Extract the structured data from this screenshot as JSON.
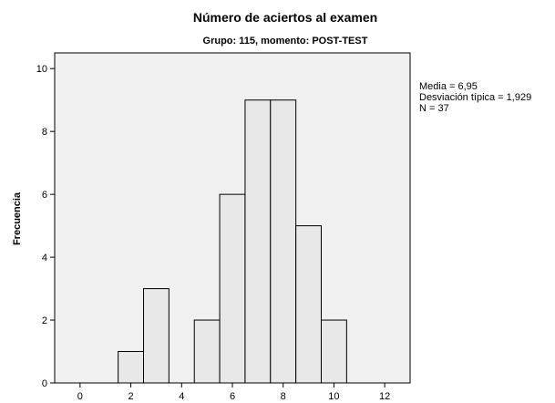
{
  "chart_data": {
    "type": "bar",
    "title": "Número de aciertos al examen",
    "subtitle": "Grupo: 115, momento: POST-TEST",
    "xlabel": "",
    "ylabel": "Frecuencia",
    "xlim": [
      -1,
      13
    ],
    "ylim": [
      0,
      10.5
    ],
    "x_ticks": [
      0,
      2,
      4,
      6,
      8,
      10,
      12
    ],
    "y_ticks": [
      0,
      2,
      4,
      6,
      8,
      10
    ],
    "bin_width": 1,
    "bins": [
      {
        "x": 2,
        "count": 1
      },
      {
        "x": 3,
        "count": 3
      },
      {
        "x": 5,
        "count": 2
      },
      {
        "x": 6,
        "count": 6
      },
      {
        "x": 7,
        "count": 9
      },
      {
        "x": 8,
        "count": 9
      },
      {
        "x": 9,
        "count": 5
      },
      {
        "x": 10,
        "count": 2
      }
    ],
    "stats": {
      "mean_label": "Media = 6,95",
      "sd_label": "Desviación típica = 1,929",
      "n_label": "N = 37"
    },
    "grid": false,
    "legend": "none",
    "colors": {
      "bar_fill": "#e8e8e8",
      "bar_stroke": "#000000",
      "plot_background": "#f0f0f0"
    }
  }
}
